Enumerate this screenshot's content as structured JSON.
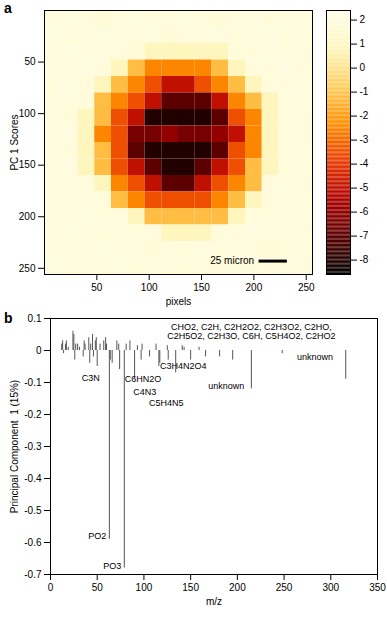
{
  "chart_data": [
    {
      "type": "heatmap",
      "panel_label": "a",
      "x_label": "pixels",
      "y_label": "PC 1 Scores",
      "xlim": [
        0,
        256
      ],
      "ylim": [
        0,
        256
      ],
      "xticks": [
        50,
        100,
        150,
        200,
        250
      ],
      "yticks": [
        50,
        100,
        150,
        200,
        250
      ],
      "x_edges": [
        0,
        16,
        32,
        48,
        64,
        80,
        96,
        112,
        128,
        144,
        160,
        176,
        192,
        208,
        224,
        240,
        256
      ],
      "y_edges": [
        0,
        16,
        32,
        48,
        64,
        80,
        96,
        112,
        128,
        144,
        160,
        176,
        192,
        208,
        224,
        240,
        256
      ],
      "cells": [
        [
          1.9,
          2.0,
          1.9,
          1.8,
          1.9,
          2.0,
          1.9,
          1.9,
          2.0,
          1.9,
          1.8,
          1.9,
          2.0,
          1.9,
          1.9,
          2.0
        ],
        [
          2.0,
          1.9,
          1.9,
          2.0,
          1.9,
          1.9,
          2.0,
          1.8,
          1.9,
          1.9,
          2.0,
          1.9,
          1.9,
          2.0,
          1.9,
          1.9
        ],
        [
          1.9,
          2.0,
          1.9,
          1.9,
          1.9,
          1.8,
          0.8,
          0.8,
          0.8,
          0.8,
          0.8,
          1.9,
          1.9,
          2.0,
          1.9,
          1.9
        ],
        [
          1.9,
          1.9,
          2.0,
          1.9,
          0.8,
          -1.2,
          -2.5,
          -2.5,
          -2.5,
          -2.5,
          -1.2,
          0.8,
          1.9,
          1.9,
          2.0,
          1.9
        ],
        [
          1.9,
          2.0,
          1.9,
          0.8,
          -1.2,
          -2.5,
          -3.5,
          -5,
          -5,
          -3.5,
          -2.5,
          -1.2,
          0.8,
          1.9,
          1.9,
          2.0
        ],
        [
          1.9,
          1.9,
          1.9,
          -1.2,
          -2.5,
          -3.5,
          -5,
          -7,
          -7,
          -7,
          -5,
          -2.5,
          -1.2,
          0.8,
          1.9,
          2.0
        ],
        [
          1.9,
          1.9,
          0.8,
          -1.2,
          -3.5,
          -5,
          -8,
          -8,
          -8,
          -8,
          -7,
          -3.5,
          -2.5,
          0.8,
          1.9,
          1.9
        ],
        [
          1.9,
          2.0,
          0.8,
          -2.5,
          -3.5,
          -6.5,
          -6.5,
          -6,
          -6.5,
          -6.5,
          -6,
          -5,
          -2.5,
          0.8,
          1.9,
          1.9
        ],
        [
          1.9,
          1.9,
          0.8,
          -1.2,
          -3.5,
          -7,
          -8,
          -8,
          -8,
          -8,
          -7,
          -3.5,
          -2.5,
          0.8,
          1.9,
          2.0
        ],
        [
          1.9,
          2.0,
          0.8,
          -1.2,
          -3.5,
          -5,
          -7,
          -8,
          -8,
          -7,
          -5,
          -3.5,
          -1.2,
          0.8,
          1.9,
          1.9
        ],
        [
          1.9,
          1.9,
          1.9,
          0.8,
          -2.5,
          -3.5,
          -5,
          -7,
          -7,
          -5,
          -3.5,
          -2.5,
          -1.2,
          1.9,
          2.0,
          1.9
        ],
        [
          2.0,
          1.9,
          1.9,
          1.9,
          -1.2,
          -2.5,
          -3.5,
          -3.5,
          -3.5,
          -3.5,
          -2.5,
          -1.2,
          0.8,
          1.9,
          1.9,
          1.9
        ],
        [
          1.9,
          1.9,
          2.0,
          1.9,
          1.9,
          0.8,
          -1.2,
          -1.2,
          -1.2,
          -1.2,
          -1.2,
          0.8,
          1.9,
          1.9,
          1.9,
          2.0
        ],
        [
          1.9,
          2.0,
          1.9,
          1.9,
          1.9,
          1.9,
          1.9,
          0.8,
          0.8,
          0.8,
          1.9,
          1.9,
          2.0,
          1.9,
          1.9,
          1.9
        ],
        [
          1.9,
          1.9,
          1.9,
          2.0,
          1.9,
          1.9,
          1.8,
          1.9,
          1.9,
          2.0,
          1.9,
          1.9,
          1.9,
          1.8,
          1.9,
          1.9
        ],
        [
          2.0,
          1.9,
          1.9,
          1.9,
          2.0,
          1.9,
          1.9,
          1.9,
          1.9,
          1.9,
          1.9,
          2.0,
          1.9,
          1.9,
          2.0,
          1.9
        ]
      ],
      "colorbar_lim": [
        -8.6,
        2.4
      ],
      "colorbar_ticks": [
        2,
        1,
        0,
        -1,
        -2,
        -3,
        -4,
        -5,
        -6,
        -7,
        -8
      ],
      "scale_bar": {
        "label": "25 micron",
        "x1": 205,
        "x2": 232,
        "y": 243
      }
    },
    {
      "type": "stem",
      "panel_label": "b",
      "x_label": "m/z",
      "y_label": "Principal Component  1 (15%)",
      "xlim": [
        0,
        350
      ],
      "ylim": [
        -0.7,
        0.1
      ],
      "xticks": [
        0,
        50,
        100,
        150,
        200,
        250,
        300,
        350
      ],
      "yticks": [
        0.1,
        0,
        -0.1,
        -0.2,
        -0.3,
        -0.4,
        -0.5,
        -0.6,
        -0.7
      ],
      "color": "#555555",
      "x": [
        12,
        13,
        14,
        16,
        17,
        19,
        24,
        25,
        26,
        27,
        29,
        31,
        35,
        36,
        37,
        41,
        42,
        43,
        45,
        46,
        48,
        49,
        50,
        53,
        57,
        59,
        60,
        63,
        64,
        66,
        71,
        73,
        74,
        79,
        81,
        85,
        90,
        93,
        97,
        98,
        106,
        113,
        116,
        117,
        125,
        126,
        134,
        141,
        143,
        150,
        159,
        166,
        181,
        195,
        215,
        248,
        316
      ],
      "values": [
        0.02,
        0.03,
        -0.01,
        0.02,
        0.03,
        0.01,
        0.06,
        0.05,
        -0.03,
        0.02,
        0.02,
        0.01,
        -0.02,
        0.03,
        0.02,
        0.04,
        -0.04,
        0.02,
        0.05,
        -0.02,
        0.03,
        0.04,
        -0.05,
        0.02,
        0.03,
        0.04,
        0.02,
        -0.59,
        -0.03,
        -0.04,
        0.03,
        0.02,
        -0.06,
        -0.68,
        0.02,
        0.03,
        -0.09,
        0.015,
        -0.03,
        0.02,
        -0.02,
        0.02,
        -0.05,
        -0.04,
        0.015,
        -0.03,
        -0.07,
        0.015,
        0.01,
        -0.03,
        0.01,
        -0.02,
        -0.02,
        -0.03,
        -0.12,
        -0.01,
        -0.09
      ],
      "annotations": [
        {
          "text": "CHO2, C2H, C2H2O2, C2H3O2, C2HO,\nC2H5O2, C2H3O, C6H, C5H4O2, C2HO2",
          "x": 215,
          "y": 0.058
        },
        {
          "text": "C3N",
          "x": 43,
          "y": -0.085
        },
        {
          "text": "C4N3",
          "x": 101,
          "y": -0.13
        },
        {
          "text": "C6HN2O",
          "x": 99,
          "y": -0.088
        },
        {
          "text": "C5H4N5",
          "x": 124,
          "y": -0.165
        },
        {
          "text": "C3H4N2O4",
          "x": 142,
          "y": -0.05
        },
        {
          "text": "unknown",
          "x": 188,
          "y": -0.11
        },
        {
          "text": "unknown",
          "x": 283,
          "y": -0.02
        },
        {
          "text": "PO2",
          "x": 50,
          "y": -0.58
        },
        {
          "text": "PO3",
          "x": 66,
          "y": -0.675
        }
      ]
    }
  ]
}
